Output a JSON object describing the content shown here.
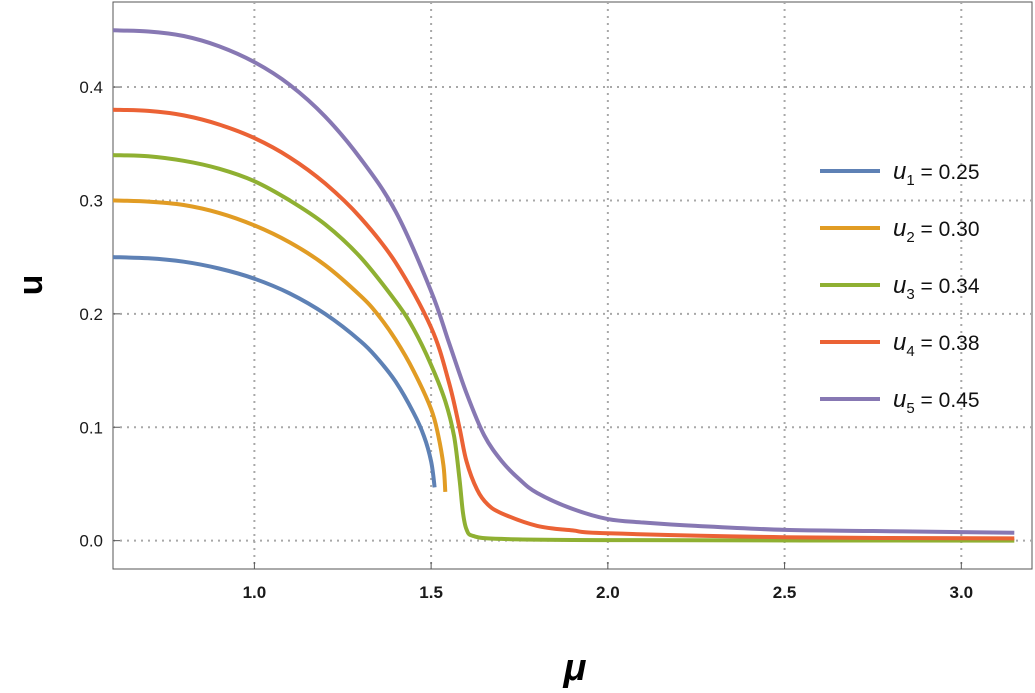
{
  "chart_data": {
    "type": "line",
    "title": "",
    "xlabel": "μ",
    "ylabel": "u",
    "xlim": [
      0.6,
      3.2
    ],
    "ylim": [
      -0.025,
      0.475
    ],
    "xticks": [
      {
        "value": 1.0,
        "label": "1.0"
      },
      {
        "value": 1.5,
        "label": "1.5"
      },
      {
        "value": 2.0,
        "label": "2.0"
      },
      {
        "value": 2.5,
        "label": "2.5"
      },
      {
        "value": 3.0,
        "label": "3.0"
      }
    ],
    "yticks": [
      {
        "value": 0.0,
        "label": "0.0"
      },
      {
        "value": 0.1,
        "label": "0.1"
      },
      {
        "value": 0.2,
        "label": "0.2"
      },
      {
        "value": 0.3,
        "label": "0.3"
      },
      {
        "value": 0.4,
        "label": "0.4"
      }
    ],
    "grid": true,
    "legend_position": "right",
    "series": [
      {
        "name": "u1 = 0.25",
        "symbol": "u",
        "sub": "1",
        "value_text": " = 0.25",
        "color": "#5e81b5",
        "points": [
          [
            0.6,
            0.25
          ],
          [
            0.7,
            0.249
          ],
          [
            0.8,
            0.246
          ],
          [
            0.9,
            0.24
          ],
          [
            1.0,
            0.231
          ],
          [
            1.1,
            0.218
          ],
          [
            1.2,
            0.2
          ],
          [
            1.3,
            0.176
          ],
          [
            1.35,
            0.16
          ],
          [
            1.4,
            0.14
          ],
          [
            1.45,
            0.113
          ],
          [
            1.48,
            0.092
          ],
          [
            1.5,
            0.07
          ],
          [
            1.51,
            0.047
          ]
        ]
      },
      {
        "name": "u2 = 0.30",
        "symbol": "u",
        "sub": "2",
        "value_text": " = 0.30",
        "color": "#e19c24",
        "points": [
          [
            0.6,
            0.3
          ],
          [
            0.7,
            0.299
          ],
          [
            0.8,
            0.296
          ],
          [
            0.9,
            0.289
          ],
          [
            1.0,
            0.278
          ],
          [
            1.1,
            0.263
          ],
          [
            1.2,
            0.243
          ],
          [
            1.3,
            0.216
          ],
          [
            1.35,
            0.199
          ],
          [
            1.4,
            0.177
          ],
          [
            1.45,
            0.15
          ],
          [
            1.5,
            0.116
          ],
          [
            1.52,
            0.093
          ],
          [
            1.535,
            0.066
          ],
          [
            1.54,
            0.043
          ]
        ]
      },
      {
        "name": "u3 = 0.34",
        "symbol": "u",
        "sub": "3",
        "value_text": " = 0.34",
        "color": "#8fb032",
        "points": [
          [
            0.6,
            0.34
          ],
          [
            0.7,
            0.339
          ],
          [
            0.8,
            0.335
          ],
          [
            0.9,
            0.328
          ],
          [
            1.0,
            0.317
          ],
          [
            1.1,
            0.3
          ],
          [
            1.2,
            0.279
          ],
          [
            1.3,
            0.25
          ],
          [
            1.4,
            0.211
          ],
          [
            1.45,
            0.187
          ],
          [
            1.5,
            0.155
          ],
          [
            1.54,
            0.123
          ],
          [
            1.565,
            0.092
          ],
          [
            1.58,
            0.055
          ],
          [
            1.59,
            0.025
          ],
          [
            1.6,
            0.01
          ],
          [
            1.62,
            0.004
          ],
          [
            1.7,
            0.0015
          ],
          [
            2.0,
            0.0005
          ],
          [
            3.15,
            0.0
          ]
        ]
      },
      {
        "name": "u4 = 0.38",
        "symbol": "u",
        "sub": "4",
        "value_text": " = 0.38",
        "color": "#eb6235",
        "points": [
          [
            0.6,
            0.38
          ],
          [
            0.7,
            0.379
          ],
          [
            0.8,
            0.375
          ],
          [
            0.9,
            0.367
          ],
          [
            1.0,
            0.355
          ],
          [
            1.1,
            0.338
          ],
          [
            1.2,
            0.315
          ],
          [
            1.3,
            0.285
          ],
          [
            1.4,
            0.245
          ],
          [
            1.5,
            0.188
          ],
          [
            1.55,
            0.14
          ],
          [
            1.58,
            0.1
          ],
          [
            1.6,
            0.07
          ],
          [
            1.63,
            0.045
          ],
          [
            1.66,
            0.032
          ],
          [
            1.7,
            0.024
          ],
          [
            1.8,
            0.013
          ],
          [
            1.9,
            0.009
          ],
          [
            2.0,
            0.0065
          ],
          [
            2.5,
            0.003
          ],
          [
            3.15,
            0.002
          ]
        ]
      },
      {
        "name": "u5 = 0.45",
        "symbol": "u",
        "sub": "5",
        "value_text": " = 0.45",
        "color": "#8778b3",
        "points": [
          [
            0.6,
            0.45
          ],
          [
            0.7,
            0.449
          ],
          [
            0.8,
            0.445
          ],
          [
            0.9,
            0.436
          ],
          [
            1.0,
            0.422
          ],
          [
            1.1,
            0.402
          ],
          [
            1.2,
            0.374
          ],
          [
            1.3,
            0.337
          ],
          [
            1.4,
            0.29
          ],
          [
            1.5,
            0.22
          ],
          [
            1.55,
            0.175
          ],
          [
            1.6,
            0.13
          ],
          [
            1.65,
            0.093
          ],
          [
            1.7,
            0.07
          ],
          [
            1.75,
            0.054
          ],
          [
            1.8,
            0.042
          ],
          [
            1.9,
            0.028
          ],
          [
            2.0,
            0.019
          ],
          [
            2.1,
            0.016
          ],
          [
            2.25,
            0.013
          ],
          [
            2.5,
            0.0095
          ],
          [
            2.75,
            0.0085
          ],
          [
            3.0,
            0.0075
          ],
          [
            3.15,
            0.007
          ]
        ]
      }
    ]
  }
}
